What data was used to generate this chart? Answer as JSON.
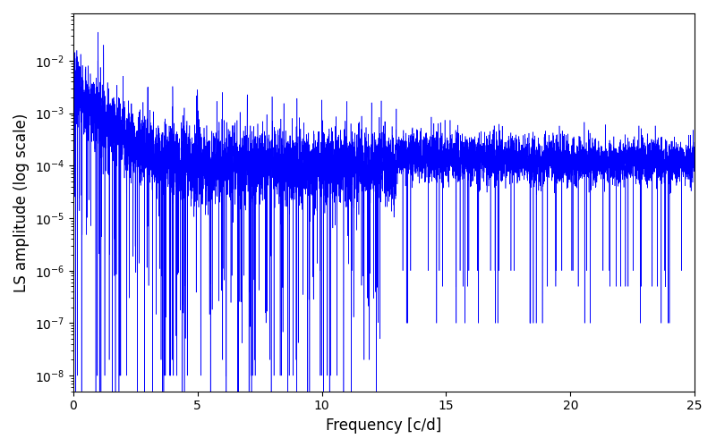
{
  "title": "",
  "xlabel": "Frequency [c/d]",
  "ylabel": "LS amplitude (log scale)",
  "xlim": [
    0,
    25
  ],
  "ylim": [
    5e-09,
    0.08
  ],
  "line_color": "#0000FF",
  "line_width": 0.4,
  "background_color": "#ffffff",
  "freq_max": 25.0,
  "n_points": 8000,
  "seed": 7,
  "figsize": [
    8.0,
    5.0
  ],
  "dpi": 100
}
